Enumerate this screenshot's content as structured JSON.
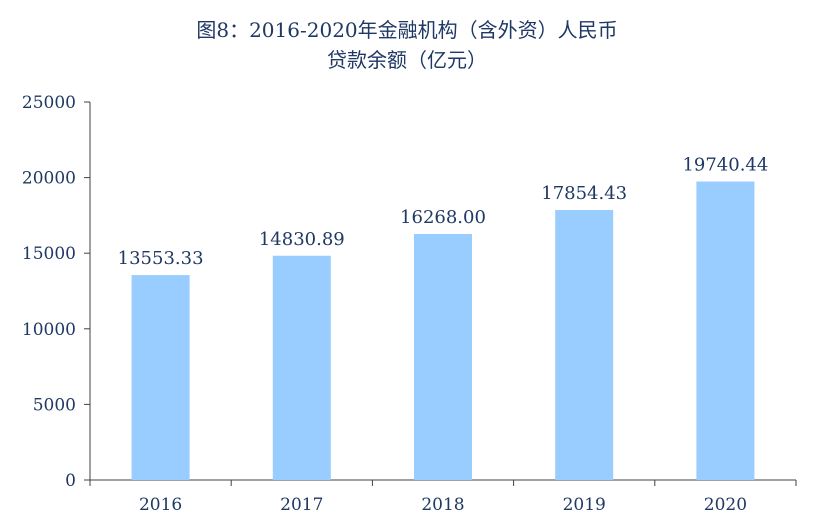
{
  "chart_data": {
    "type": "bar",
    "title": "图8：2016-2020年金融机构（含外资）人民币",
    "subtitle": "贷款余额（亿元）",
    "xlabel": "",
    "ylabel": "",
    "categories": [
      "2016",
      "2017",
      "2018",
      "2019",
      "2020"
    ],
    "values": [
      13553.33,
      14830.89,
      16268.0,
      17854.43,
      19740.44
    ],
    "data_labels": [
      "13553.33",
      "14830.89",
      "16268.00",
      "17854.43",
      "19740.44"
    ],
    "ylim": [
      0,
      25000
    ],
    "yticks": [
      0,
      5000,
      10000,
      15000,
      20000,
      25000
    ],
    "ytick_labels": [
      "0",
      "5000",
      "10000",
      "15000",
      "20000",
      "25000"
    ],
    "grid": false,
    "legend": "none",
    "colors": {
      "bar": "#99ccff",
      "axis": "#404040",
      "text": "#1f3864"
    }
  }
}
